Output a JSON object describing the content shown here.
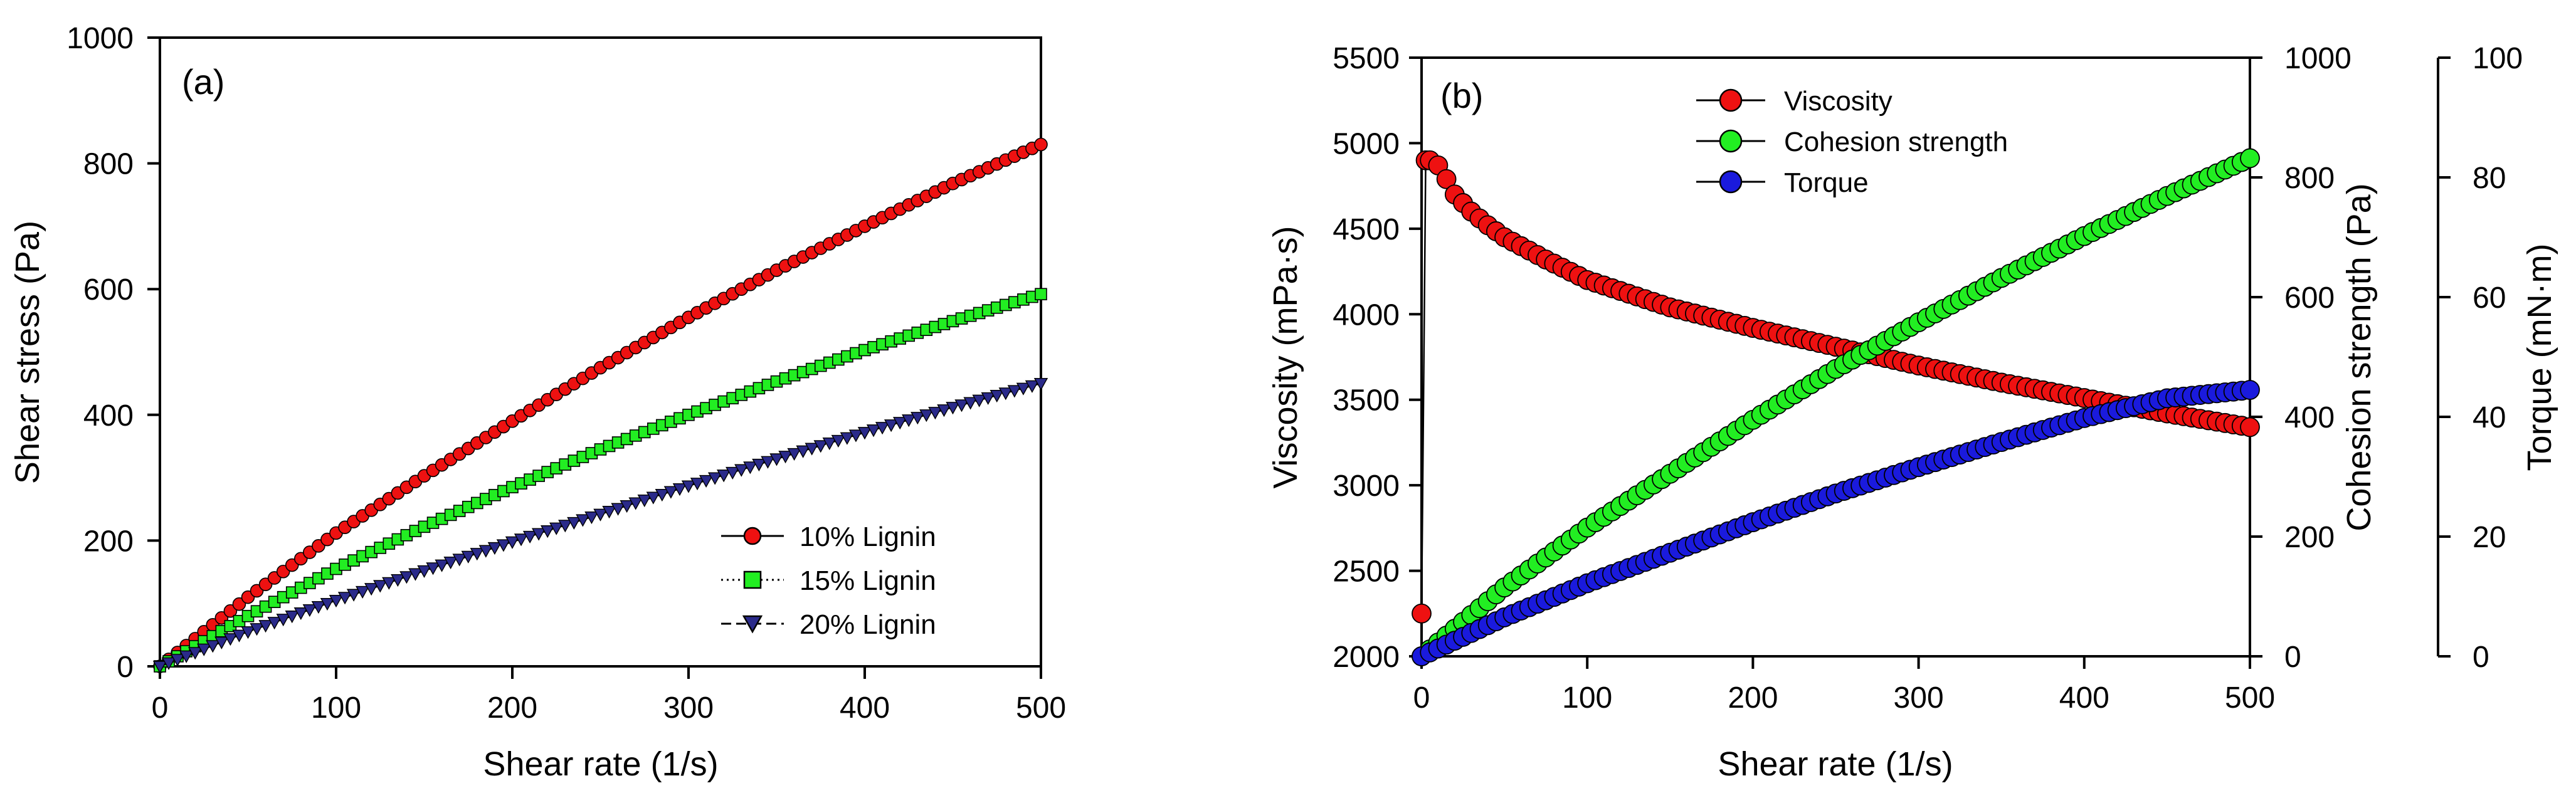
{
  "colors": {
    "red": "#ee1111",
    "green": "#22ee22",
    "blue": "#1a1add",
    "navy": "#2a2a8a",
    "axis": "#000000"
  },
  "chart_data": [
    {
      "panel": "(a)",
      "type": "scatter",
      "xlabel": "Shear rate (1/s)",
      "ylabel": "Shear stress (Pa)",
      "xlim": [
        0,
        500
      ],
      "ylim": [
        0,
        1000
      ],
      "xticks": [
        0,
        100,
        200,
        300,
        400,
        500
      ],
      "yticks": [
        0,
        200,
        400,
        600,
        800,
        1000
      ],
      "legend_position": "bottom-right",
      "series": [
        {
          "name": "10% Lignin",
          "marker": "circle",
          "color": "#ee1111",
          "line": "solid",
          "x": [
            0,
            50,
            100,
            150,
            200,
            250,
            300,
            350,
            400,
            450,
            500
          ],
          "y": [
            0,
            110,
            212,
            303,
            390,
            475,
            555,
            630,
            700,
            768,
            830
          ]
        },
        {
          "name": "15% Lignin",
          "marker": "square",
          "color": "#22ee22",
          "line": "dotted",
          "x": [
            0,
            50,
            100,
            150,
            200,
            250,
            300,
            350,
            400,
            450,
            500
          ],
          "y": [
            0,
            80,
            155,
            222,
            285,
            345,
            400,
            453,
            503,
            549,
            592
          ]
        },
        {
          "name": "20% Lignin",
          "marker": "triangle-down",
          "color": "#2a2a8a",
          "line": "dashed",
          "x": [
            0,
            50,
            100,
            150,
            200,
            250,
            300,
            350,
            400,
            450,
            500
          ],
          "y": [
            0,
            55,
            105,
            152,
            198,
            242,
            287,
            330,
            372,
            412,
            450
          ]
        }
      ]
    },
    {
      "panel": "(b)",
      "type": "scatter",
      "xlabel": "Shear rate (1/s)",
      "xlim": [
        0,
        500
      ],
      "xticks": [
        0,
        100,
        200,
        300,
        400,
        500
      ],
      "legend_position": "top-center",
      "axes": {
        "left": {
          "label": "Viscosity (mPa·s)",
          "lim": [
            2000,
            5500
          ],
          "ticks": [
            2000,
            2500,
            3000,
            3500,
            4000,
            4500,
            5000,
            5500
          ]
        },
        "right1": {
          "label": "Cohesion strength (Pa)",
          "lim": [
            0,
            1000
          ],
          "ticks": [
            0,
            200,
            400,
            600,
            800,
            1000
          ]
        },
        "right2": {
          "label": "Torque (mN·m)",
          "lim": [
            0,
            100
          ],
          "ticks": [
            0,
            20,
            40,
            60,
            80,
            100
          ]
        }
      },
      "series": [
        {
          "name": "Viscosity",
          "marker": "circle",
          "color": "#ee1111",
          "axis": "left",
          "x": [
            0,
            2.5,
            5,
            10,
            15,
            20,
            30,
            40,
            50,
            75,
            100,
            150,
            200,
            250,
            300,
            350,
            400,
            450,
            500
          ],
          "y": [
            2250,
            4900,
            4900,
            4870,
            4790,
            4700,
            4600,
            4520,
            4450,
            4320,
            4200,
            4040,
            3920,
            3810,
            3700,
            3600,
            3510,
            3420,
            3340
          ]
        },
        {
          "name": "Cohesion strength",
          "marker": "circle",
          "color": "#22ee22",
          "axis": "right1",
          "x": [
            0,
            50,
            100,
            150,
            200,
            250,
            300,
            350,
            400,
            450,
            500
          ],
          "y": [
            0,
            115,
            215,
            305,
            395,
            480,
            558,
            632,
            702,
            769,
            832
          ]
        },
        {
          "name": "Torque",
          "marker": "circle",
          "color": "#1a1add",
          "axis": "right2",
          "x": [
            0,
            50,
            100,
            150,
            200,
            250,
            300,
            350,
            400,
            450,
            500
          ],
          "y": [
            0,
            6.5,
            12.2,
            17.3,
            22.4,
            27.2,
            31.6,
            35.8,
            39.8,
            43.1,
            44.5
          ]
        }
      ]
    }
  ]
}
